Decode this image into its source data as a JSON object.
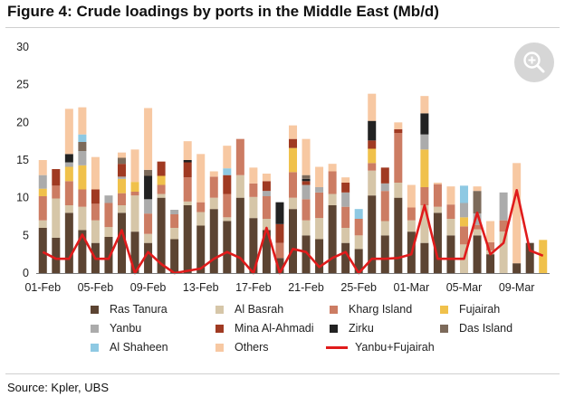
{
  "figure": {
    "title": "Figure 4: Crude loadings by ports in the Middle East (Mb/d)",
    "source": "Source: Kpler, UBS"
  },
  "zoom_icon": "zoom-in-icon",
  "chart_data": {
    "type": "bar",
    "stacked": true,
    "ylim": [
      0,
      30
    ],
    "yticks": [
      0,
      5,
      10,
      15,
      20,
      25,
      30
    ],
    "grid": false,
    "legend_position": "bottom",
    "x_tick_labels": [
      "01-Feb",
      "05-Feb",
      "09-Feb",
      "13-Feb",
      "17-Feb",
      "21-Feb",
      "25-Feb",
      "01-Mar",
      "05-Mar",
      "09-Mar"
    ],
    "x_tick_every": 4,
    "categories": [
      "01-Feb",
      "02-Feb",
      "03-Feb",
      "04-Feb",
      "05-Feb",
      "06-Feb",
      "07-Feb",
      "08-Feb",
      "09-Feb",
      "10-Feb",
      "11-Feb",
      "12-Feb",
      "13-Feb",
      "14-Feb",
      "15-Feb",
      "16-Feb",
      "17-Feb",
      "18-Feb",
      "19-Feb",
      "20-Feb",
      "21-Feb",
      "22-Feb",
      "23-Feb",
      "24-Feb",
      "25-Feb",
      "26-Feb",
      "27-Feb",
      "28-Feb",
      "01-Mar",
      "02-Mar",
      "03-Mar",
      "04-Mar",
      "05-Mar",
      "06-Mar",
      "07-Mar",
      "08-Mar",
      "09-Mar",
      "10-Mar",
      "11-Mar"
    ],
    "series": [
      {
        "name": "Ras Tanura",
        "color": "#5c4432",
        "values": [
          6.0,
          4.7,
          8.0,
          5.7,
          4.0,
          4.8,
          8.0,
          5.5,
          4.0,
          10.0,
          4.5,
          9.0,
          6.3,
          8.5,
          6.9,
          10.0,
          7.3,
          5.7,
          2.0,
          8.5,
          5.0,
          4.5,
          9.0,
          4.0,
          3.2,
          10.3,
          5.0,
          10.0,
          5.5,
          4.0,
          8.0,
          5.0,
          0.0,
          5.0,
          2.5,
          0,
          0,
          0,
          0
        ]
      },
      {
        "name": "Al Basrah",
        "color": "#d6c6a8",
        "values": [
          1.0,
          5.2,
          1.0,
          3.1,
          3.0,
          1.3,
          1.0,
          4.8,
          1.2,
          0.5,
          1.5,
          0.5,
          1.8,
          1.5,
          0.5,
          3.0,
          2.8,
          1.5,
          0.0,
          1.5,
          2.0,
          2.8,
          1.5,
          2.0,
          1.8,
          3.3,
          1.9,
          2.0,
          1.5,
          5.0,
          0.8,
          2.2,
          3.8,
          0.8,
          0.5,
          5.5,
          0,
          0,
          0
        ]
      },
      {
        "name": "Kharg Island",
        "color": "#cc7c63",
        "values": [
          3.2,
          1.7,
          3.2,
          2.3,
          2.2,
          3.2,
          1.6,
          0.5,
          2.7,
          1.2,
          1.8,
          3.2,
          1.3,
          2.8,
          3.1,
          4.8,
          1.8,
          3.0,
          2.0,
          3.4,
          2.8,
          3.4,
          3.0,
          2.8,
          2.2,
          1.0,
          4.0,
          6.6,
          1.7,
          2.4,
          3.0,
          1.9,
          2.4,
          0.6,
          1.1,
          1.5,
          0,
          0,
          0
        ]
      },
      {
        "name": "Fujairah",
        "color": "#f0c14b",
        "values": [
          1.0,
          0.0,
          1.9,
          3.2,
          0.0,
          0.0,
          1.9,
          1.3,
          0.0,
          1.2,
          0.0,
          0.0,
          0.0,
          0.0,
          0.0,
          0.0,
          0.0,
          0.0,
          0.0,
          3.2,
          0.0,
          0.0,
          0.0,
          0.0,
          0.0,
          1.9,
          0.0,
          0.0,
          0.0,
          5.0,
          0.0,
          0.0,
          1.2,
          0.0,
          0.0,
          0.0,
          0,
          0,
          0
        ]
      },
      {
        "name": "Yanbu",
        "color": "#ababab",
        "values": [
          1.8,
          0.0,
          0.6,
          1.9,
          0.0,
          1.0,
          0.3,
          0.0,
          1.9,
          0.0,
          0.6,
          0.0,
          0.0,
          0.0,
          0.0,
          0.0,
          0.0,
          0.7,
          0.0,
          0.0,
          1.9,
          0.7,
          0.0,
          1.9,
          0.0,
          0.0,
          1.0,
          0.0,
          0.0,
          2.0,
          0.0,
          0.0,
          1.9,
          1.5,
          0.0,
          3.7,
          0,
          0,
          0
        ]
      },
      {
        "name": "Mina Al-Ahmadi",
        "color": "#a03a22",
        "values": [
          0.0,
          2.2,
          0.0,
          0.0,
          1.9,
          0.0,
          1.7,
          0.0,
          0.0,
          1.9,
          0.0,
          2.0,
          0.0,
          0.0,
          2.5,
          0.0,
          0.0,
          1.3,
          2.5,
          1.2,
          0.5,
          0.0,
          0.0,
          1.3,
          0.0,
          1.1,
          2.1,
          0.5,
          0.0,
          0.0,
          0.0,
          0.0,
          0.0,
          0.0,
          0.0,
          0.0,
          0,
          0,
          0
        ]
      },
      {
        "name": "Zirku",
        "color": "#222222",
        "values": [
          0.0,
          0.0,
          1.1,
          0.0,
          0.0,
          0.0,
          0.0,
          0.0,
          3.1,
          0.0,
          0.0,
          0.3,
          0.0,
          0.0,
          0.0,
          0.0,
          0.0,
          0.0,
          2.9,
          0.0,
          0.3,
          0.0,
          0.0,
          0.0,
          0.0,
          2.6,
          0.0,
          0.0,
          0.0,
          2.8,
          0.0,
          0.0,
          0.0,
          0.0,
          0.0,
          0.0,
          0,
          0,
          0
        ]
      },
      {
        "name": "Das Island",
        "color": "#7c6a5a",
        "values": [
          0.0,
          0.0,
          0.0,
          1.2,
          0.0,
          0.0,
          0.8,
          0.0,
          0.8,
          0.0,
          0.0,
          0.0,
          0.0,
          0.0,
          0.0,
          0.0,
          0.0,
          0.0,
          0.0,
          0.0,
          0.5,
          0.0,
          0.0,
          0.0,
          0.0,
          0.0,
          0.0,
          0.0,
          0.0,
          0.0,
          0.0,
          0.0,
          0.0,
          3.0,
          0.0,
          0.0,
          0,
          0,
          0
        ]
      },
      {
        "name": "Al Shaheen",
        "color": "#8ec9e3",
        "values": [
          0.0,
          0.0,
          0.0,
          1.0,
          0.0,
          0.0,
          0.0,
          0.0,
          0.0,
          0.0,
          0.0,
          0.0,
          0.0,
          0.0,
          0.9,
          0.0,
          0.0,
          0.0,
          0.0,
          0.0,
          0.0,
          0.0,
          0.0,
          0.0,
          1.3,
          0.0,
          0.0,
          0.0,
          0.0,
          0.0,
          0.0,
          0.0,
          2.3,
          0.0,
          0.0,
          0.0,
          0,
          0,
          0
        ]
      },
      {
        "name": "Others",
        "color": "#f7c8a2",
        "values": [
          2.0,
          0.0,
          6.0,
          3.6,
          4.3,
          0.0,
          0.7,
          4.3,
          8.2,
          0.0,
          0.0,
          2.5,
          6.4,
          0.7,
          3.0,
          0.0,
          2.1,
          1.0,
          0.0,
          1.8,
          4.8,
          2.7,
          1.0,
          0.7,
          0.0,
          3.6,
          0.0,
          0.9,
          3.0,
          2.3,
          0.2,
          2.4,
          0.0,
          0.6,
          2.8,
          0.0,
          0,
          0,
          0
        ]
      }
    ],
    "line_series": {
      "name": "Yanbu+Fujairah",
      "color": "#e01b1b",
      "values": [
        2.8,
        1.9,
        1.9,
        5.1,
        1.9,
        1.9,
        5.7,
        0.0,
        2.8,
        1.2,
        0.0,
        0.3,
        0.6,
        1.9,
        2.8,
        2.0,
        0.0,
        6.0,
        0.0,
        3.2,
        2.8,
        0.8,
        2.0,
        2.8,
        0.0,
        1.9,
        1.9,
        2.0,
        2.5,
        9.0,
        1.9,
        1.9,
        1.9,
        8.0,
        2.5,
        4.0,
        11.0,
        3.0,
        2.3
      ]
    },
    "extra_bars": {
      "note_series_totals": "last three days shown as simple stacks",
      "values": [
        {
          "index": 36,
          "Yanbu": 0.0,
          "Fujairah": 0.0,
          "Ras Tanura": 1.3,
          "Al Basrah": 0.0,
          "Kharg Island": 0.0,
          "Others": 13.3,
          "Yanbu_tail": 0.0
        },
        {
          "index": 37,
          "Ras Tanura": 4.0,
          "Al Basrah": 0.0,
          "Kharg Island": 0.0,
          "Others": 0.0
        },
        {
          "index": 38,
          "Fujairah": 4.4
        }
      ]
    }
  },
  "legend": {
    "items": [
      {
        "label": "Ras Tanura",
        "color": "#5c4432"
      },
      {
        "label": "Al Basrah",
        "color": "#d6c6a8"
      },
      {
        "label": "Kharg Island",
        "color": "#cc7c63"
      },
      {
        "label": "Fujairah",
        "color": "#f0c14b"
      },
      {
        "label": "Yanbu",
        "color": "#ababab"
      },
      {
        "label": "Mina Al-Ahmadi",
        "color": "#a03a22"
      },
      {
        "label": "Zirku",
        "color": "#222222"
      },
      {
        "label": "Das Island",
        "color": "#7c6a5a"
      },
      {
        "label": "Al Shaheen",
        "color": "#8ec9e3"
      },
      {
        "label": "Others",
        "color": "#f7c8a2"
      },
      {
        "label": "Yanbu+Fujairah",
        "color": "#e01b1b",
        "line": true
      }
    ]
  }
}
